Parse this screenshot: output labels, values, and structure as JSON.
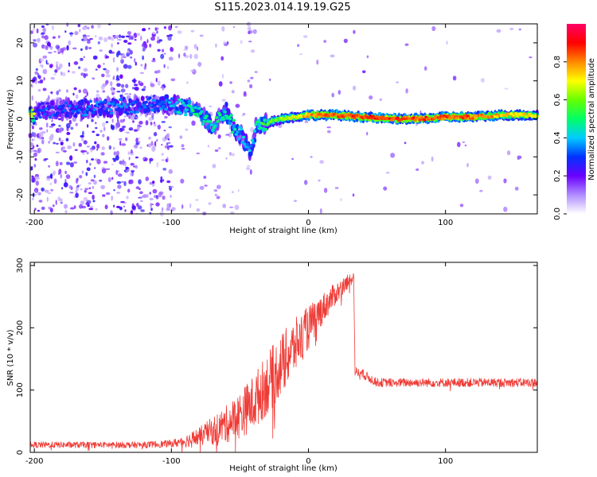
{
  "title": "S115.2023.014.19.19.G25",
  "chart_data": [
    {
      "type": "heatmap",
      "name": "spectrogram",
      "xlabel": "Height of straight line (km)",
      "ylabel": "Frequency (Hz)",
      "xlim": [
        -203,
        167
      ],
      "ylim": [
        -25,
        25
      ],
      "xticks": [
        -200,
        -100,
        0,
        100
      ],
      "yticks": [
        -20,
        -10,
        0,
        10,
        20
      ],
      "colorbar": {
        "label": "Normalized spectral amplitude",
        "range": [
          0,
          1
        ],
        "ticks": [
          "0.0",
          "0.2",
          "0.4",
          "0.6",
          "0.8"
        ]
      },
      "ridge": [
        {
          "x": -200,
          "f": 2,
          "a": 0.28
        },
        {
          "x": -180,
          "f": 2.5,
          "a": 0.3
        },
        {
          "x": -160,
          "f": 3,
          "a": 0.32
        },
        {
          "x": -140,
          "f": 3,
          "a": 0.33
        },
        {
          "x": -120,
          "f": 3.5,
          "a": 0.3
        },
        {
          "x": -100,
          "f": 4,
          "a": 0.38
        },
        {
          "x": -90,
          "f": 3,
          "a": 0.45
        },
        {
          "x": -80,
          "f": 1.5,
          "a": 0.48
        },
        {
          "x": -70,
          "f": -2,
          "a": 0.45
        },
        {
          "x": -60,
          "f": 2,
          "a": 0.45
        },
        {
          "x": -55,
          "f": -2,
          "a": 0.45
        },
        {
          "x": -48,
          "f": -5,
          "a": 0.42
        },
        {
          "x": -42,
          "f": -9,
          "a": 0.35
        },
        {
          "x": -38,
          "f": -2,
          "a": 0.45
        },
        {
          "x": -30,
          "f": -1,
          "a": 0.55
        },
        {
          "x": -20,
          "f": 0,
          "a": 0.62
        },
        {
          "x": -10,
          "f": 0.5,
          "a": 0.7
        },
        {
          "x": 0,
          "f": 1,
          "a": 0.78
        },
        {
          "x": 20,
          "f": 1,
          "a": 0.85
        },
        {
          "x": 40,
          "f": 0.5,
          "a": 0.85
        },
        {
          "x": 60,
          "f": 0,
          "a": 0.85
        },
        {
          "x": 80,
          "f": 0,
          "a": 0.85
        },
        {
          "x": 100,
          "f": 0.5,
          "a": 0.85
        },
        {
          "x": 120,
          "f": 0.5,
          "a": 0.82
        },
        {
          "x": 140,
          "f": 1,
          "a": 0.75
        },
        {
          "x": 167,
          "f": 1,
          "a": 0.7
        }
      ]
    },
    {
      "type": "line",
      "name": "snr",
      "xlabel": "Height of straight line (km)",
      "ylabel": "SNR (10 * v/v)",
      "xlim": [
        -203,
        167
      ],
      "ylim": [
        0,
        305
      ],
      "xticks": [
        -200,
        -100,
        0,
        100
      ],
      "yticks": [
        0,
        100,
        200,
        300
      ],
      "color": "#ef3b36",
      "series": [
        {
          "x": [
            -203,
            -180,
            -160,
            -140,
            -120,
            -100,
            -90,
            -80,
            -70,
            -60,
            -50,
            -40,
            -30,
            -20,
            -10,
            0,
            10,
            20,
            30,
            33,
            34,
            40,
            50,
            60,
            80,
            100,
            120,
            140,
            167
          ],
          "mean": [
            12,
            12,
            12,
            12,
            12,
            14,
            18,
            25,
            35,
            45,
            60,
            80,
            110,
            140,
            170,
            200,
            230,
            255,
            275,
            285,
            130,
            125,
            112,
            112,
            112,
            112,
            112,
            112,
            112
          ],
          "noise": [
            5,
            5,
            5,
            5,
            5,
            6,
            10,
            15,
            22,
            30,
            38,
            45,
            50,
            50,
            45,
            35,
            25,
            18,
            12,
            10,
            8,
            8,
            7,
            7,
            7,
            7,
            7,
            7,
            7
          ]
        }
      ]
    }
  ]
}
